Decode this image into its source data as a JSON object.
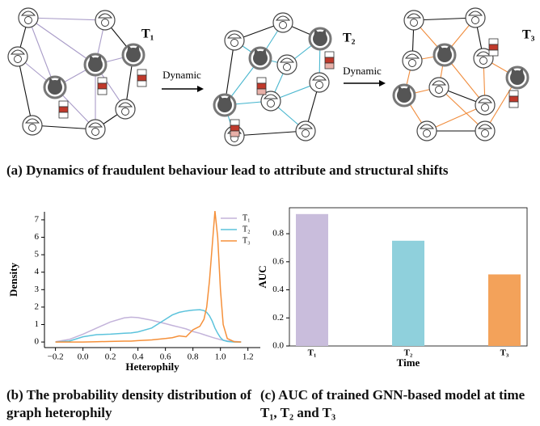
{
  "diagram": {
    "graphs": [
      {
        "label": "T₁"
      },
      {
        "label": "T₂"
      },
      {
        "label": "T₃"
      }
    ],
    "arrows": [
      "Dynamic",
      "Dynamic"
    ]
  },
  "captions": {
    "a": "(a) Dynamics of fraudulent behaviour lead to attribute and structural shifts",
    "b": "(b) The probability density distribution of graph heterophily",
    "c": "(c) AUC of trained GNN-based model at time T₁, T₂ and T₃"
  },
  "chart_data": [
    {
      "type": "line",
      "xlabel": "Heterophily",
      "ylabel": "Density",
      "x": [
        -0.2,
        -0.1,
        0,
        0.1,
        0.2,
        0.3,
        0.35,
        0.4,
        0.5,
        0.6,
        0.65,
        0.7,
        0.75,
        0.8,
        0.85,
        0.88,
        0.9,
        0.92,
        0.94,
        0.96,
        0.98,
        1.0,
        1.02,
        1.05,
        1.1,
        1.15
      ],
      "series": [
        {
          "name": "T₁",
          "color": "#c3b3da",
          "values": [
            0.02,
            0.15,
            0.45,
            0.8,
            1.15,
            1.38,
            1.42,
            1.4,
            1.25,
            1.05,
            0.95,
            0.85,
            0.75,
            0.6,
            0.5,
            0.42,
            0.37,
            0.32,
            0.27,
            0.22,
            0.18,
            0.13,
            0.1,
            0.06,
            0.03,
            0.01
          ]
        },
        {
          "name": "T₂",
          "color": "#5cc3dc",
          "values": [
            0,
            0.05,
            0.3,
            0.42,
            0.45,
            0.5,
            0.52,
            0.58,
            0.8,
            1.3,
            1.55,
            1.7,
            1.78,
            1.83,
            1.85,
            1.8,
            1.7,
            1.5,
            1.2,
            0.8,
            0.5,
            0.25,
            0.1,
            0.03,
            0,
            0
          ]
        },
        {
          "name": "T₃",
          "color": "#f5903a",
          "values": [
            0,
            0,
            0,
            0.02,
            0.03,
            0.05,
            0.05,
            0.08,
            0.12,
            0.2,
            0.25,
            0.35,
            0.3,
            0.7,
            0.9,
            1.3,
            2.0,
            3.5,
            5.5,
            7.5,
            6.0,
            3.0,
            1.0,
            0.2,
            0.02,
            0
          ]
        }
      ],
      "xlim": [
        -0.28,
        1.29
      ],
      "ylim": [
        -0.32,
        7.46
      ],
      "xticks": [
        {
          "value": -0.2,
          "label": "−0.2"
        },
        {
          "value": 0,
          "label": "0.0"
        },
        0.2,
        0.4,
        0.6,
        0.8,
        {
          "value": 1,
          "label": "1.0"
        },
        1.2
      ],
      "yticks": [
        0,
        1,
        2,
        3,
        4,
        5,
        6,
        7
      ],
      "legend": "upper right"
    },
    {
      "type": "bar",
      "xlabel": "Time",
      "ylabel": "AUC",
      "categories": [
        "T₁",
        "T₂",
        "T₃"
      ],
      "values": [
        0.94,
        0.75,
        0.51
      ],
      "colors": [
        "#c9bddc",
        "#8fd0dc",
        "#f3a25a"
      ],
      "ylim": [
        0,
        0.985
      ],
      "yticks": [
        {
          "value": 0,
          "label": "0.0"
        },
        0.2,
        0.4,
        0.6,
        0.8
      ]
    }
  ]
}
